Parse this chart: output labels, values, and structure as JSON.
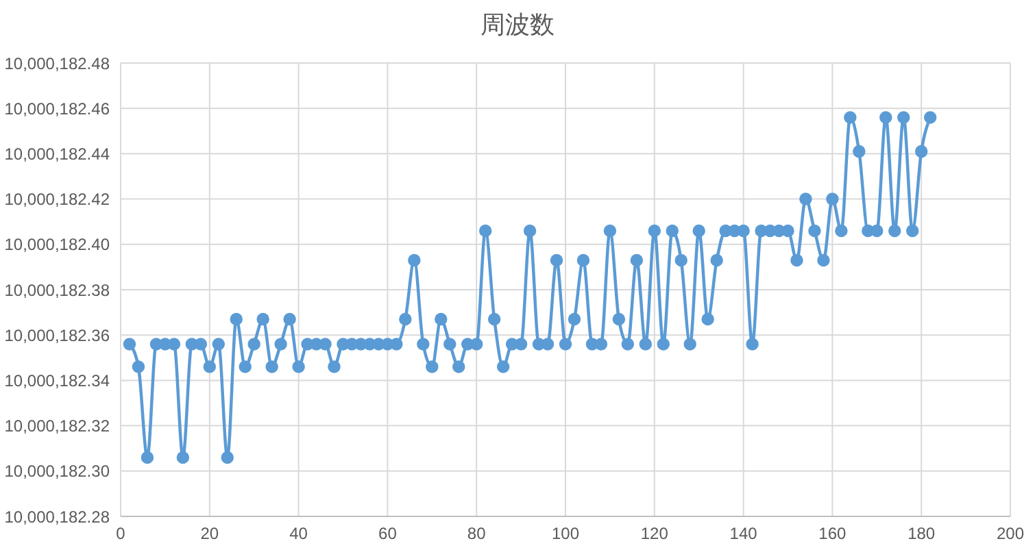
{
  "chart_data": {
    "type": "line",
    "title": "周波数",
    "x": [
      2,
      4,
      6,
      8,
      10,
      12,
      14,
      16,
      18,
      20,
      22,
      24,
      26,
      28,
      30,
      32,
      34,
      36,
      38,
      40,
      42,
      44,
      46,
      48,
      50,
      52,
      54,
      56,
      58,
      60,
      62,
      64,
      66,
      68,
      70,
      72,
      74,
      76,
      78,
      80,
      82,
      84,
      86,
      88,
      90,
      92,
      94,
      96,
      98,
      100,
      102,
      104,
      106,
      108,
      110,
      112,
      114,
      116,
      118,
      120,
      122,
      124,
      126,
      128,
      130,
      132,
      134,
      136,
      138,
      140,
      142,
      144,
      146,
      148,
      150,
      152,
      154,
      156,
      158,
      160,
      162,
      164,
      166,
      168,
      170,
      172,
      174,
      176,
      178,
      180,
      182
    ],
    "series": [
      {
        "color": "#5b9bd5",
        "values": [
          10000182.356,
          10000182.346,
          10000182.306,
          10000182.356,
          10000182.356,
          10000182.356,
          10000182.306,
          10000182.356,
          10000182.356,
          10000182.346,
          10000182.356,
          10000182.306,
          10000182.367,
          10000182.346,
          10000182.356,
          10000182.367,
          10000182.346,
          10000182.356,
          10000182.367,
          10000182.346,
          10000182.356,
          10000182.356,
          10000182.356,
          10000182.346,
          10000182.356,
          10000182.356,
          10000182.356,
          10000182.356,
          10000182.356,
          10000182.356,
          10000182.356,
          10000182.367,
          10000182.393,
          10000182.356,
          10000182.346,
          10000182.367,
          10000182.356,
          10000182.346,
          10000182.356,
          10000182.356,
          10000182.406,
          10000182.367,
          10000182.346,
          10000182.356,
          10000182.356,
          10000182.406,
          10000182.356,
          10000182.356,
          10000182.393,
          10000182.356,
          10000182.367,
          10000182.393,
          10000182.356,
          10000182.356,
          10000182.406,
          10000182.367,
          10000182.356,
          10000182.393,
          10000182.356,
          10000182.406,
          10000182.356,
          10000182.406,
          10000182.393,
          10000182.356,
          10000182.406,
          10000182.367,
          10000182.393,
          10000182.406,
          10000182.406,
          10000182.406,
          10000182.356,
          10000182.406,
          10000182.406,
          10000182.406,
          10000182.406,
          10000182.393,
          10000182.42,
          10000182.406,
          10000182.393,
          10000182.42,
          10000182.406,
          10000182.456,
          10000182.441,
          10000182.406,
          10000182.406,
          10000182.456,
          10000182.406,
          10000182.456,
          10000182.406,
          10000182.441,
          10000182.456
        ]
      }
    ],
    "xlim": [
      0,
      200
    ],
    "xticks": [
      0,
      20,
      40,
      60,
      80,
      100,
      120,
      140,
      160,
      180,
      200
    ],
    "ylim": [
      10000182.28,
      10000182.48
    ],
    "yticks": [
      {
        "value": 10000182.28,
        "label": "10,000,182.28"
      },
      {
        "value": 10000182.3,
        "label": "10,000,182.30"
      },
      {
        "value": 10000182.32,
        "label": "10,000,182.32"
      },
      {
        "value": 10000182.34,
        "label": "10,000,182.34"
      },
      {
        "value": 10000182.36,
        "label": "10,000,182.36"
      },
      {
        "value": 10000182.38,
        "label": "10,000,182.38"
      },
      {
        "value": 10000182.4,
        "label": "10,000,182.40"
      },
      {
        "value": 10000182.42,
        "label": "10,000,182.42"
      },
      {
        "value": 10000182.44,
        "label": "10,000,182.44"
      },
      {
        "value": 10000182.46,
        "label": "10,000,182.46"
      },
      {
        "value": 10000182.48,
        "label": "10,000,182.48"
      }
    ],
    "grid": true,
    "marker": "circle",
    "line_style": "solid",
    "legend": false
  }
}
